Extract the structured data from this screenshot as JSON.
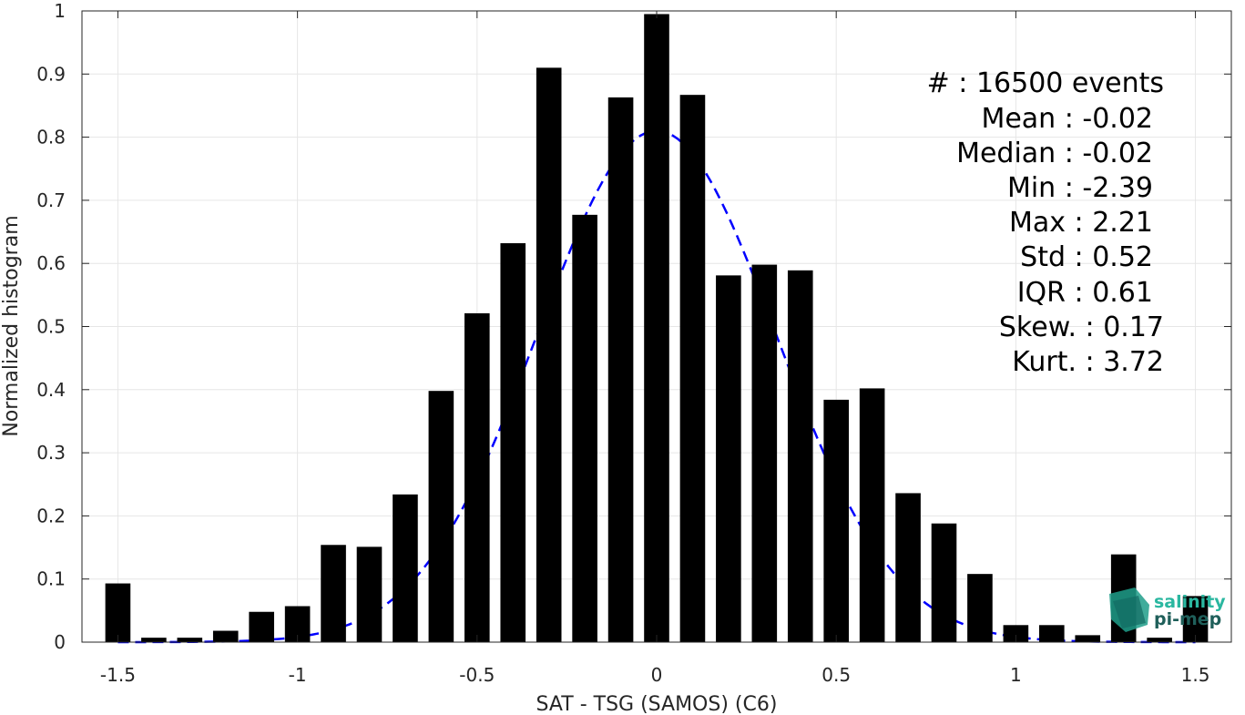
{
  "chart_data": {
    "type": "bar",
    "xlabel": "SAT - TSG (SAMOS) (C6)",
    "ylabel": "Normalized histogram",
    "xlim": [
      -1.6,
      1.6
    ],
    "ylim": [
      0,
      1
    ],
    "grid": true,
    "x_ticks": [
      -1.5,
      -1,
      -0.5,
      0,
      0.5,
      1,
      1.5
    ],
    "x_tick_labels": [
      "-1.5",
      "-1",
      "-0.5",
      "0",
      "0.5",
      "1",
      "1.5"
    ],
    "y_ticks": [
      0,
      0.1,
      0.2,
      0.3,
      0.4,
      0.5,
      0.6,
      0.7,
      0.8,
      0.9,
      1
    ],
    "y_tick_labels": [
      "0",
      "0.1",
      "0.2",
      "0.3",
      "0.4",
      "0.5",
      "0.6",
      "0.7",
      "0.8",
      "0.9",
      "1"
    ],
    "bar_width": 0.07,
    "bar_color": "#000000",
    "x": [
      -1.5,
      -1.4,
      -1.3,
      -1.2,
      -1.1,
      -1.0,
      -0.9,
      -0.8,
      -0.7,
      -0.6,
      -0.5,
      -0.4,
      -0.3,
      -0.2,
      -0.1,
      0.0,
      0.1,
      0.2,
      0.3,
      0.4,
      0.5,
      0.6,
      0.7,
      0.8,
      0.9,
      1.0,
      1.1,
      1.2,
      1.3,
      1.4,
      1.5
    ],
    "values": [
      0.093,
      0.007,
      0.007,
      0.018,
      0.048,
      0.057,
      0.154,
      0.151,
      0.234,
      0.398,
      0.521,
      0.632,
      0.91,
      0.677,
      0.863,
      0.995,
      0.867,
      0.581,
      0.598,
      0.589,
      0.384,
      0.402,
      0.236,
      0.188,
      0.108,
      0.027,
      0.027,
      0.011,
      0.139,
      0.007,
      0.073
    ],
    "fit": {
      "type": "gaussian",
      "mean": 0,
      "peak": 0.81,
      "std": 0.33,
      "x_range": [
        -1.5,
        1.5
      ],
      "color": "#0000ff"
    },
    "stats": [
      "#  : 16500 events",
      "Mean : -0.02",
      "Median : -0.02",
      "Min : -2.39",
      "Max : 2.21",
      "Std : 0.52",
      "IQR : 0.61",
      "Skew. : 0.17",
      "Kurt. : 3.72"
    ]
  },
  "logo": {
    "line1": "salinity",
    "line2": "pi-mep",
    "color1": "#2ab7a0",
    "color2": "#1f5f5a"
  }
}
